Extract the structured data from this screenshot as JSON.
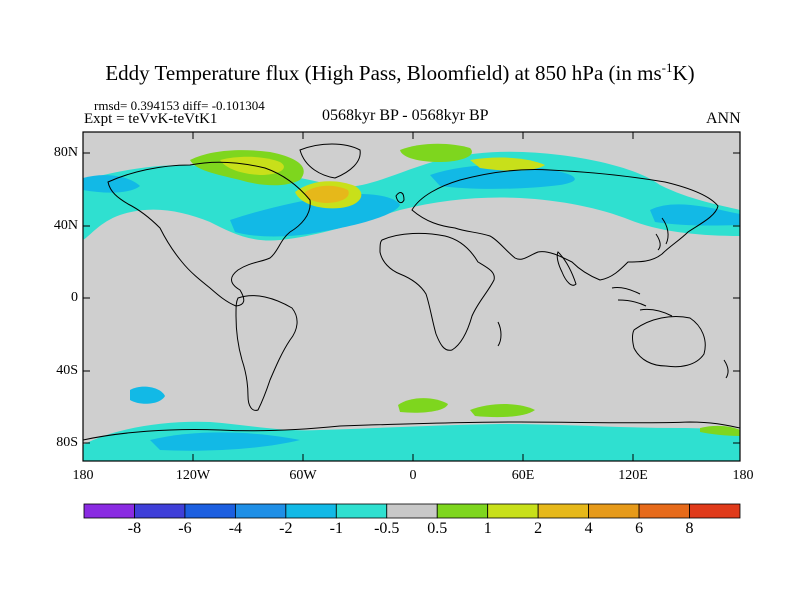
{
  "title": "Eddy Temperature flux (High Pass, Bloomfield) at 850 hPa (in ms",
  "title_units_sup": "-1",
  "title_units_end": "K)",
  "stats": "rmsd= 0.394153 diff= -0.101304",
  "experiment": "Expt = teVvK-teVtK1",
  "period": "0568kyr BP - 0568kyr BP",
  "season": "ANN",
  "lat_labels": [
    "80N",
    "40N",
    "0",
    "40S",
    "80S"
  ],
  "lon_labels": [
    "180",
    "120W",
    "60W",
    "0",
    "60E",
    "120E",
    "180"
  ],
  "colorbar": {
    "labels": [
      "-8",
      "-6",
      "-4",
      "-2",
      "-1",
      "-0.5",
      "0.5",
      "1",
      "2",
      "4",
      "6",
      "8"
    ],
    "colors": [
      "#8a2be2",
      "#3f3fd8",
      "#1c5fe0",
      "#1f8fe6",
      "#12b9e6",
      "#2fe0d0",
      "#c8c8c8",
      "#7ed61e",
      "#c8e01a",
      "#e6b81a",
      "#e69a1a",
      "#e66a1a",
      "#e03a1a"
    ]
  },
  "map_colors": {
    "land_background": "#cfcfcf",
    "coast": "#000000"
  }
}
